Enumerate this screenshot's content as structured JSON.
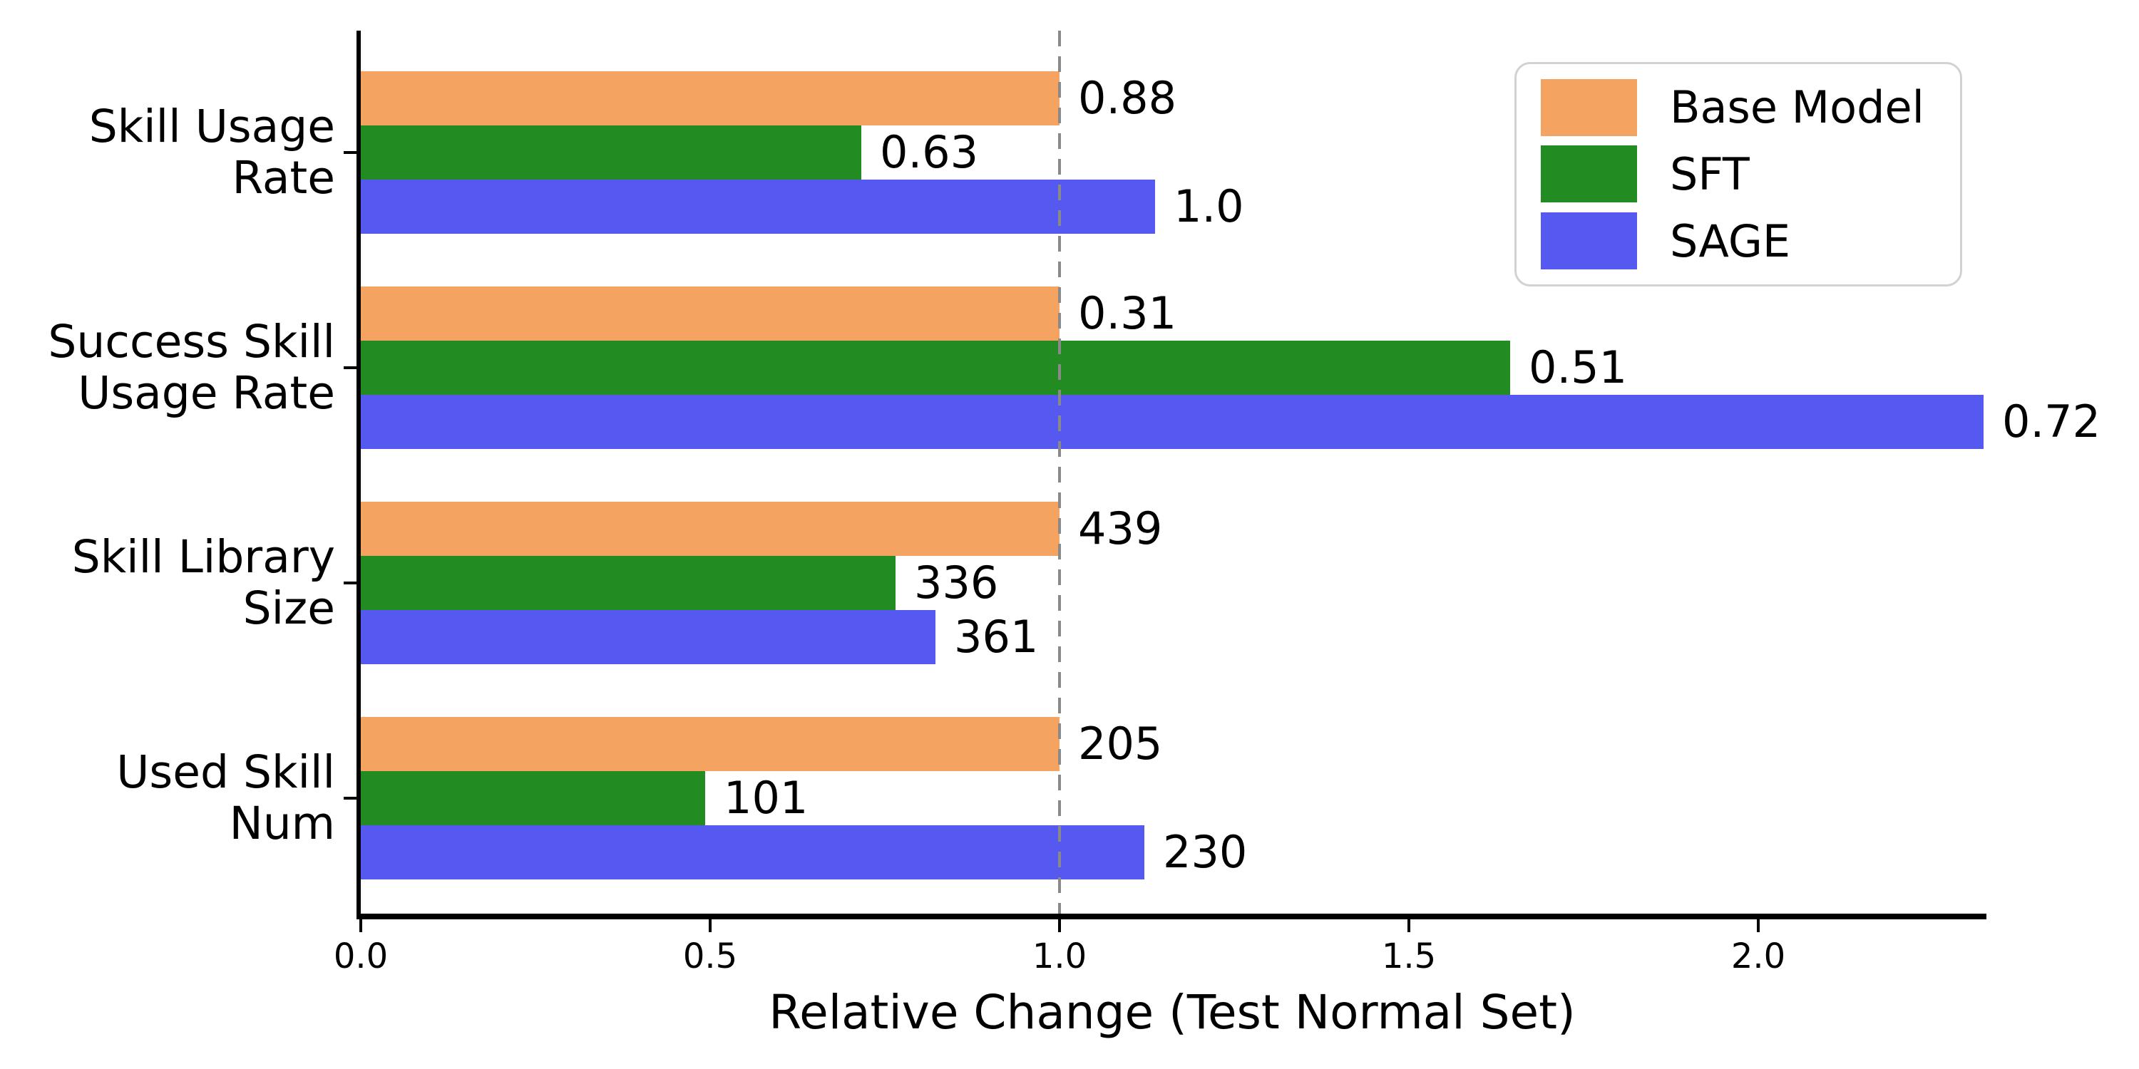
{
  "figure": {
    "background": "#ffffff"
  },
  "chart_data": {
    "type": "bar",
    "orientation": "horizontal",
    "title": "",
    "xlabel": "Relative Change (Test Normal Set)",
    "categories": [
      "Skill Usage\nRate",
      "Success Skill\nUsage Rate",
      "Skill Library\nSize",
      "Used Skill\nNum"
    ],
    "series": [
      {
        "name": "Base Model",
        "color": "#F4A460",
        "values": [
          0.88,
          0.31,
          439,
          205
        ],
        "value_labels": [
          "0.88",
          "0.31",
          "439",
          "205"
        ]
      },
      {
        "name": "SFT",
        "color": "#228B22",
        "values": [
          0.63,
          0.51,
          336,
          101
        ],
        "value_labels": [
          "0.63",
          "0.51",
          "336",
          "101"
        ]
      },
      {
        "name": "SAGE",
        "color": "#5659F0",
        "values": [
          1.0,
          0.72,
          361,
          230
        ],
        "value_labels": [
          "1.0",
          "0.72",
          "361",
          "230"
        ]
      }
    ],
    "bar_length_encoding": "value divided by Base Model value (relative change); Base Model bars all equal 1.0",
    "x_ticks": [
      "0.0",
      "0.5",
      "1.0",
      "1.5",
      "2.0"
    ],
    "x_tick_values": [
      0,
      0.5,
      1,
      1.5,
      2
    ],
    "xlim": [
      0,
      2.3226
    ],
    "grid": false,
    "reference_line": {
      "value": 1.0,
      "style": "dashed",
      "color": "#8a8a8a"
    },
    "legend": {
      "position": "upper-right",
      "entries": [
        "Base Model",
        "SFT",
        "SAGE"
      ]
    }
  }
}
